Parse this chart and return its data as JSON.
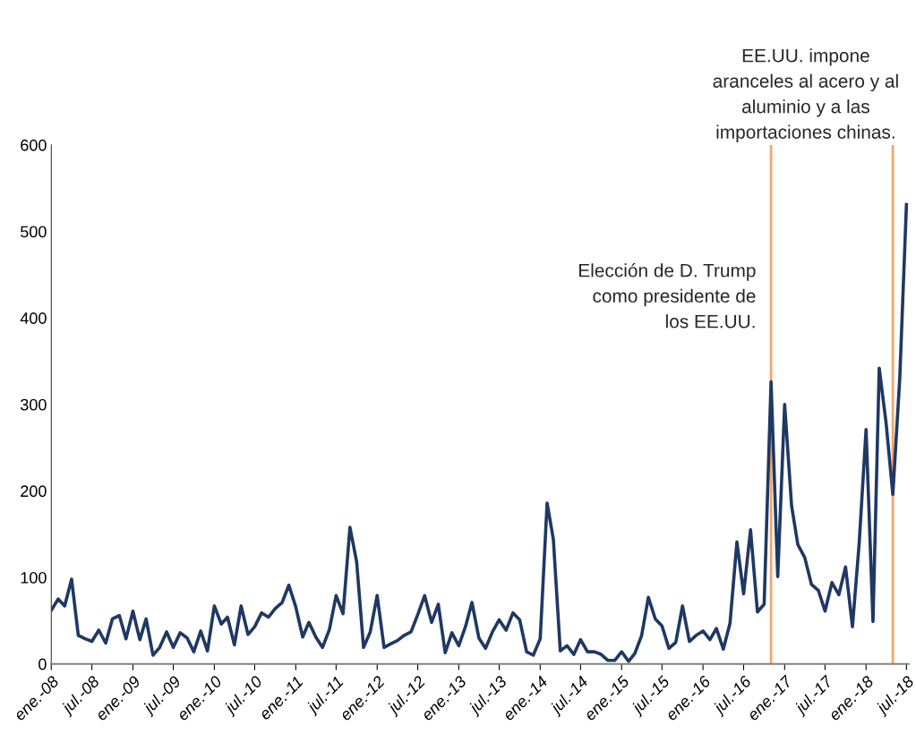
{
  "chart_data": {
    "type": "line",
    "x": [
      "2008-01",
      "2008-02",
      "2008-03",
      "2008-04",
      "2008-05",
      "2008-06",
      "2008-07",
      "2008-08",
      "2008-09",
      "2008-10",
      "2008-11",
      "2008-12",
      "2009-01",
      "2009-02",
      "2009-03",
      "2009-04",
      "2009-05",
      "2009-06",
      "2009-07",
      "2009-08",
      "2009-09",
      "2009-10",
      "2009-11",
      "2009-12",
      "2010-01",
      "2010-02",
      "2010-03",
      "2010-04",
      "2010-05",
      "2010-06",
      "2010-07",
      "2010-08",
      "2010-09",
      "2010-10",
      "2010-11",
      "2010-12",
      "2011-01",
      "2011-02",
      "2011-03",
      "2011-04",
      "2011-05",
      "2011-06",
      "2011-07",
      "2011-08",
      "2011-09",
      "2011-10",
      "2011-11",
      "2011-12",
      "2012-01",
      "2012-02",
      "2012-03",
      "2012-04",
      "2012-05",
      "2012-06",
      "2012-07",
      "2012-08",
      "2012-09",
      "2012-10",
      "2012-11",
      "2012-12",
      "2013-01",
      "2013-02",
      "2013-03",
      "2013-04",
      "2013-05",
      "2013-06",
      "2013-07",
      "2013-08",
      "2013-09",
      "2013-10",
      "2013-11",
      "2013-12",
      "2014-01",
      "2014-02",
      "2014-03",
      "2014-04",
      "2014-05",
      "2014-06",
      "2014-07",
      "2014-08",
      "2014-09",
      "2014-10",
      "2014-11",
      "2014-12",
      "2015-01",
      "2015-02",
      "2015-03",
      "2015-04",
      "2015-05",
      "2015-06",
      "2015-07",
      "2015-08",
      "2015-09",
      "2015-10",
      "2015-11",
      "2015-12",
      "2016-01",
      "2016-02",
      "2016-03",
      "2016-04",
      "2016-05",
      "2016-06",
      "2016-07",
      "2016-08",
      "2016-09",
      "2016-10",
      "2016-11",
      "2016-12",
      "2017-01",
      "2017-02",
      "2017-03",
      "2017-04",
      "2017-05",
      "2017-06",
      "2017-07",
      "2017-08",
      "2017-09",
      "2017-10",
      "2017-11",
      "2017-12",
      "2018-01",
      "2018-02",
      "2018-03",
      "2018-04",
      "2018-05",
      "2018-06",
      "2018-07"
    ],
    "series": [
      {
        "color": "#1f3864",
        "values": [
          62,
          75,
          67,
          98,
          33,
          29,
          26,
          39,
          24,
          52,
          56,
          29,
          61,
          28,
          52,
          10,
          19,
          37,
          19,
          36,
          30,
          14,
          38,
          15,
          67,
          46,
          54,
          22,
          67,
          34,
          43,
          59,
          54,
          64,
          71,
          91,
          66,
          31,
          48,
          31,
          19,
          40,
          79,
          58,
          158,
          118,
          19,
          37,
          79,
          19,
          23,
          27,
          33,
          37,
          57,
          79,
          48,
          69,
          13,
          36,
          21,
          44,
          71,
          30,
          18,
          37,
          51,
          39,
          59,
          51,
          14,
          10,
          29,
          186,
          144,
          15,
          21,
          11,
          28,
          14,
          14,
          11,
          4,
          4,
          14,
          3,
          12,
          33,
          77,
          52,
          44,
          18,
          25,
          67,
          26,
          33,
          38,
          28,
          41,
          17,
          47,
          141,
          81,
          155,
          60,
          69,
          326,
          101,
          300,
          183,
          138,
          123,
          92,
          85,
          61,
          94,
          80,
          112,
          43,
          139,
          271,
          49,
          342,
          278,
          196,
          330,
          531
        ]
      }
    ],
    "xlim": [
      "2008-01",
      "2018-07-25"
    ],
    "xticks": [
      {
        "value": "2008-01",
        "label": "ene.-08"
      },
      {
        "value": "2008-07",
        "label": "jul.-08"
      },
      {
        "value": "2009-01",
        "label": "ene.-09"
      },
      {
        "value": "2009-07",
        "label": "jul.-09"
      },
      {
        "value": "2010-01",
        "label": "ene.-10"
      },
      {
        "value": "2010-07",
        "label": "jul.-10"
      },
      {
        "value": "2011-01",
        "label": "ene.-11"
      },
      {
        "value": "2011-07",
        "label": "jul.-11"
      },
      {
        "value": "2012-01",
        "label": "ene.-12"
      },
      {
        "value": "2012-07",
        "label": "jul.-12"
      },
      {
        "value": "2013-01",
        "label": "ene.-13"
      },
      {
        "value": "2013-07",
        "label": "jul.-13"
      },
      {
        "value": "2014-01",
        "label": "ene.-14"
      },
      {
        "value": "2014-07",
        "label": "jul.-14"
      },
      {
        "value": "2015-01",
        "label": "ene.-15"
      },
      {
        "value": "2015-07",
        "label": "jul.-15"
      },
      {
        "value": "2016-01",
        "label": "ene.-16"
      },
      {
        "value": "2016-07",
        "label": "jul.-16"
      },
      {
        "value": "2017-01",
        "label": "ene.-17"
      },
      {
        "value": "2017-07",
        "label": "jul.-17"
      },
      {
        "value": "2018-01",
        "label": "ene.-18"
      },
      {
        "value": "2018-07",
        "label": "jul.-18"
      }
    ],
    "ylim": [
      0,
      600
    ],
    "yticks": [
      0,
      100,
      200,
      300,
      400,
      500,
      600
    ],
    "grid": false,
    "legend": false,
    "marker": "none",
    "line_style": "solid",
    "ref_lines": [
      {
        "axis": "x",
        "value": "2016-11",
        "label": "Elección de D. Trump\ncomo presidente de\nlos EE.UU.",
        "color": "#f4a46a"
      },
      {
        "axis": "x",
        "value": "2018-05",
        "label": "EE.UU. impone\naranceles al acero y al\naluminio y a las\nimportaciones chinas.",
        "color": "#f4a46a"
      }
    ]
  }
}
